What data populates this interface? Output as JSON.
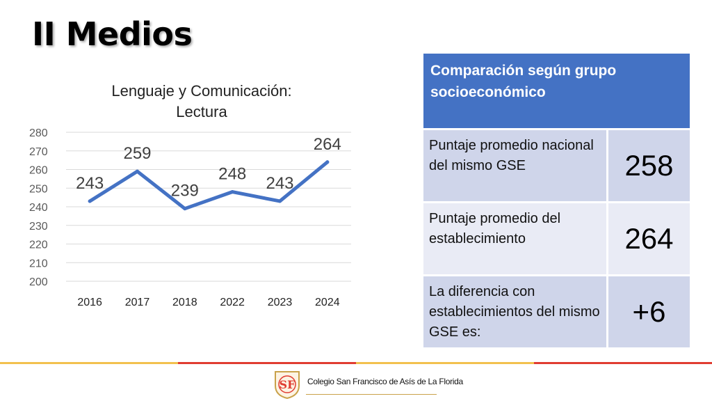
{
  "slide": {
    "title": "II Medios"
  },
  "colors": {
    "line": "#4472c4",
    "header_bg": "#4472c4",
    "row_dark": "#cfd5ea",
    "row_light": "#e9ebf5",
    "footer_gold": "#f2c14e",
    "footer_red": "#e03c31"
  },
  "chart_data": {
    "type": "line",
    "title": "Lenguaje y Comunicación: Lectura",
    "title_lines": [
      "Lenguaje y Comunicación:",
      "Lectura"
    ],
    "categories": [
      "2016",
      "2017",
      "2018",
      "2022",
      "2023",
      "2024"
    ],
    "series": [
      {
        "values": [
          243,
          259,
          239,
          248,
          243,
          264
        ]
      }
    ],
    "data_labels": [
      "243",
      "259",
      "239",
      "248",
      "243",
      "264"
    ],
    "ylim": [
      200,
      280
    ],
    "yticks": [
      200,
      210,
      220,
      230,
      240,
      250,
      260,
      270,
      280
    ],
    "grid": true,
    "xlabel": "",
    "ylabel": ""
  },
  "table": {
    "header": "Comparación según grupo socioeconómico",
    "rows": [
      {
        "label": "Puntaje promedio nacional del mismo GSE",
        "value": "258"
      },
      {
        "label": "Puntaje promedio del establecimiento",
        "value": "264"
      },
      {
        "label": "La diferencia con establecimientos del mismo GSE es:",
        "value": "+6"
      }
    ]
  },
  "footer": {
    "school_name": "Colegio San Francisco de Asís de La Florida",
    "logo_letters": "SF"
  }
}
